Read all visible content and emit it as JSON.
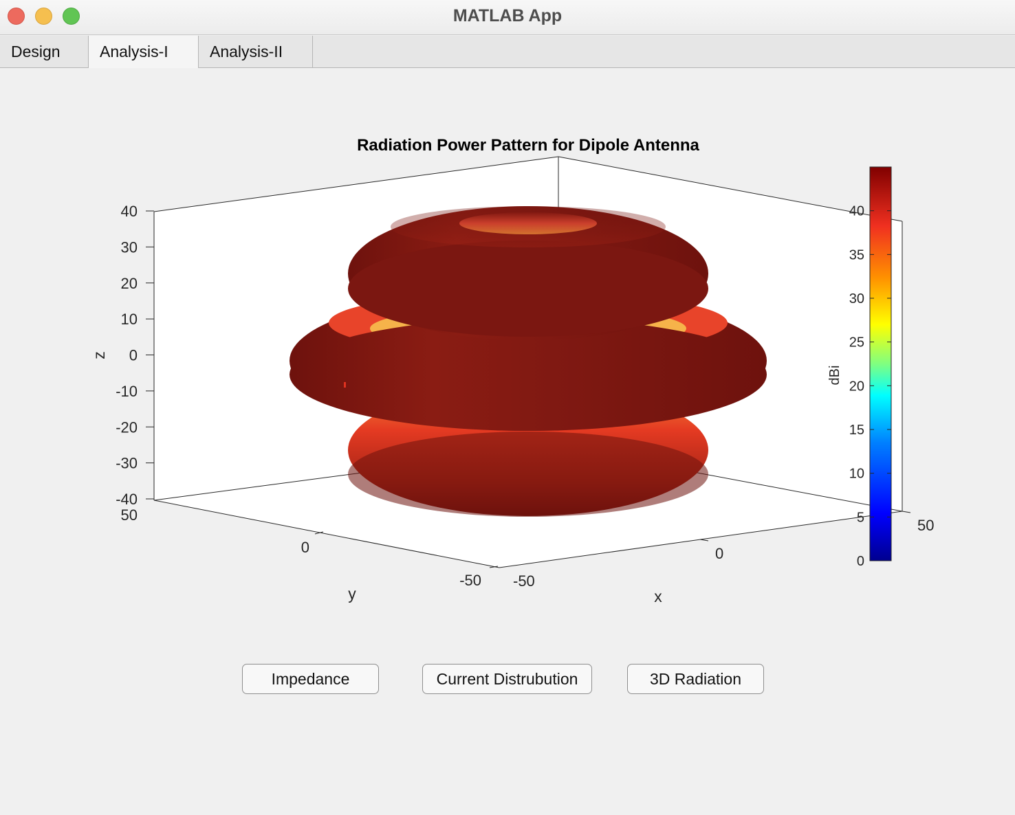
{
  "window": {
    "title": "MATLAB App"
  },
  "tabs": [
    {
      "label": "Design"
    },
    {
      "label": "Analysis-I"
    },
    {
      "label": "Analysis-II"
    }
  ],
  "active_tab": "Analysis-I",
  "buttons": {
    "impedance": "Impedance",
    "current": "Current Distrubution",
    "radiation": "3D Radiation"
  },
  "colors": {
    "surface_dark": "#7a1712",
    "surface_mid": "#e03220",
    "surface_light": "#f7d84a",
    "colormap": [
      "#00008f",
      "#0000ff",
      "#0080ff",
      "#00ffff",
      "#80ff80",
      "#ffff00",
      "#ff8000",
      "#ff0000",
      "#800000"
    ]
  },
  "chart_data": {
    "type": "surface-3d",
    "title": "Radiation Power Pattern for Dipole Antenna",
    "xlabel": "x",
    "ylabel": "y",
    "zlabel": "z",
    "x_ticks": [
      "-50",
      "0",
      "50"
    ],
    "y_ticks": [
      "50",
      "0",
      "-50"
    ],
    "z_ticks": [
      "40",
      "30",
      "20",
      "10",
      "0",
      "-10",
      "-20",
      "-30",
      "-40"
    ],
    "xlim": [
      -50,
      50
    ],
    "ylim": [
      -50,
      50
    ],
    "zlim": [
      -40,
      40
    ],
    "colorbar": {
      "label": "dBi",
      "ticks": [
        "40",
        "35",
        "30",
        "25",
        "20",
        "15",
        "10",
        "5",
        "0"
      ],
      "range": [
        0,
        45
      ],
      "colormap": "jet"
    },
    "lobes": [
      {
        "name": "upper",
        "z_center": 22
      },
      {
        "name": "middle",
        "z_center": -2
      },
      {
        "name": "lower",
        "z_center": -24
      }
    ]
  }
}
